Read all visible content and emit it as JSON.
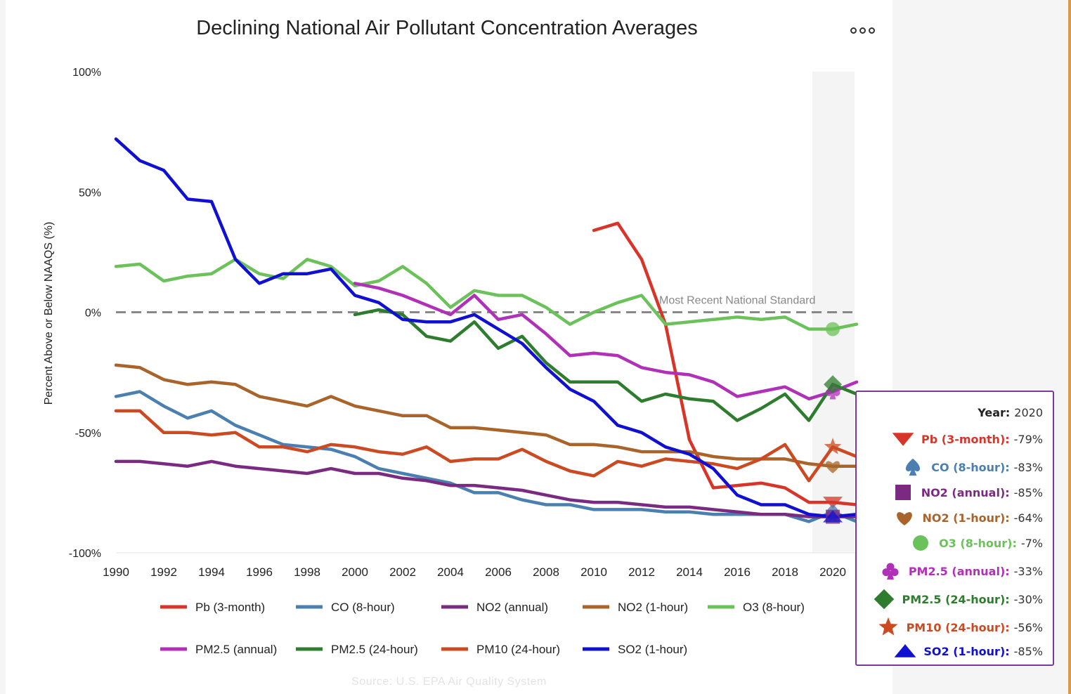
{
  "header": {
    "title": "Declining National Air Pollutant Concentration Averages",
    "menu_icon": "more-horizontal-icon"
  },
  "source": "Source: U.S. EPA Air Quality System",
  "standard_label": "Most Recent National Standard",
  "tooltip": {
    "year_label": "Year:",
    "year_value": "2020",
    "rows": [
      {
        "label": "Pb (3-month):",
        "value": "-79%",
        "color": "#d8352a",
        "symbol": "triangle-down"
      },
      {
        "label": "CO (8-hour):",
        "value": "-83%",
        "color": "#4a7fb0",
        "symbol": "spade"
      },
      {
        "label": "NO2 (annual):",
        "value": "-85%",
        "color": "#7a2a80",
        "symbol": "square"
      },
      {
        "label": "NO2 (1-hour):",
        "value": "-64%",
        "color": "#a8642a",
        "symbol": "heart"
      },
      {
        "label": "O3 (8-hour):",
        "value": "-7%",
        "color": "#6cc25a",
        "symbol": "circle"
      },
      {
        "label": "PM2.5 (annual):",
        "value": "-33%",
        "color": "#b030b8",
        "symbol": "club"
      },
      {
        "label": "PM2.5 (24-hour):",
        "value": "-30%",
        "color": "#2e7d2e",
        "symbol": "diamond"
      },
      {
        "label": "PM10 (24-hour):",
        "value": "-56%",
        "color": "#cc4a22",
        "symbol": "star"
      },
      {
        "label": "SO2 (1-hour):",
        "value": "-85%",
        "color": "#1010d0",
        "symbol": "triangle-up"
      }
    ]
  },
  "chart_data": {
    "type": "line",
    "title": "Declining National Air Pollutant Concentration Averages",
    "ylabel": "Percent Above or Below NAAQS (%)",
    "xlabel": "",
    "xlim": [
      1990,
      2021
    ],
    "ylim": [
      -100,
      100
    ],
    "x_ticks": [
      1990,
      1992,
      1994,
      1996,
      1998,
      2000,
      2002,
      2004,
      2006,
      2008,
      2010,
      2012,
      2014,
      2016,
      2018,
      2020
    ],
    "y_ticks": [
      {
        "value": 100,
        "label": "100%"
      },
      {
        "value": 50,
        "label": "50%"
      },
      {
        "value": 0,
        "label": "0%"
      },
      {
        "value": -50,
        "label": "-50%"
      },
      {
        "value": -100,
        "label": "-100%"
      }
    ],
    "reference_line": {
      "y": 0,
      "label": "Most Recent National Standard"
    },
    "highlight_year": 2020,
    "grid": false,
    "legend_position": "bottom",
    "series": [
      {
        "name": "Pb (3-month)",
        "color": "#d8352a",
        "x": [
          2010,
          2011,
          2012,
          2013,
          2014,
          2015,
          2016,
          2017,
          2018,
          2019,
          2020,
          2021
        ],
        "values": [
          34,
          37,
          22,
          -5,
          -53,
          -73,
          -72,
          -71,
          -73,
          -79,
          -79,
          -80
        ]
      },
      {
        "name": "CO (8-hour)",
        "color": "#4a7fb0",
        "x": [
          1990,
          1991,
          1992,
          1993,
          1994,
          1995,
          1996,
          1997,
          1998,
          1999,
          2000,
          2001,
          2002,
          2003,
          2004,
          2005,
          2006,
          2007,
          2008,
          2009,
          2010,
          2011,
          2012,
          2013,
          2014,
          2015,
          2016,
          2017,
          2018,
          2019,
          2020,
          2021
        ],
        "values": [
          -35,
          -33,
          -39,
          -44,
          -41,
          -47,
          -51,
          -55,
          -56,
          -57,
          -60,
          -65,
          -67,
          -69,
          -71,
          -75,
          -75,
          -78,
          -80,
          -80,
          -82,
          -82,
          -82,
          -83,
          -83,
          -84,
          -84,
          -84,
          -84,
          -87,
          -83,
          -87
        ]
      },
      {
        "name": "NO2 (annual)",
        "color": "#7a2a80",
        "x": [
          1990,
          1991,
          1992,
          1993,
          1994,
          1995,
          1996,
          1997,
          1998,
          1999,
          2000,
          2001,
          2002,
          2003,
          2004,
          2005,
          2006,
          2007,
          2008,
          2009,
          2010,
          2011,
          2012,
          2013,
          2014,
          2015,
          2016,
          2017,
          2018,
          2019,
          2020,
          2021
        ],
        "values": [
          -62,
          -62,
          -63,
          -64,
          -62,
          -64,
          -65,
          -66,
          -67,
          -65,
          -67,
          -67,
          -69,
          -70,
          -72,
          -72,
          -73,
          -74,
          -76,
          -78,
          -79,
          -79,
          -80,
          -81,
          -81,
          -82,
          -83,
          -84,
          -84,
          -85,
          -85,
          -85
        ]
      },
      {
        "name": "NO2 (1-hour)",
        "color": "#a8642a",
        "x": [
          1990,
          1991,
          1992,
          1993,
          1994,
          1995,
          1996,
          1997,
          1998,
          1999,
          2000,
          2001,
          2002,
          2003,
          2004,
          2005,
          2006,
          2007,
          2008,
          2009,
          2010,
          2011,
          2012,
          2013,
          2014,
          2015,
          2016,
          2017,
          2018,
          2019,
          2020,
          2021
        ],
        "values": [
          -22,
          -23,
          -28,
          -30,
          -29,
          -30,
          -35,
          -37,
          -39,
          -35,
          -39,
          -41,
          -43,
          -43,
          -48,
          -48,
          -49,
          -50,
          -51,
          -55,
          -55,
          -56,
          -58,
          -58,
          -58,
          -60,
          -61,
          -61,
          -61,
          -63,
          -64,
          -64
        ]
      },
      {
        "name": "O3 (8-hour)",
        "color": "#6cc25a",
        "x": [
          1990,
          1991,
          1992,
          1993,
          1994,
          1995,
          1996,
          1997,
          1998,
          1999,
          2000,
          2001,
          2002,
          2003,
          2004,
          2005,
          2006,
          2007,
          2008,
          2009,
          2010,
          2011,
          2012,
          2013,
          2014,
          2015,
          2016,
          2017,
          2018,
          2019,
          2020,
          2021
        ],
        "values": [
          19,
          20,
          13,
          15,
          16,
          22,
          16,
          14,
          22,
          19,
          11,
          13,
          19,
          12,
          2,
          9,
          7,
          7,
          2,
          -5,
          0,
          4,
          7,
          -5,
          -4,
          -3,
          -2,
          -3,
          -2,
          -7,
          -7,
          -5
        ]
      },
      {
        "name": "PM2.5 (annual)",
        "color": "#b030b8",
        "x": [
          2000,
          2001,
          2002,
          2003,
          2004,
          2005,
          2006,
          2007,
          2008,
          2009,
          2010,
          2011,
          2012,
          2013,
          2014,
          2015,
          2016,
          2017,
          2018,
          2019,
          2020,
          2021
        ],
        "values": [
          12,
          10,
          7,
          3,
          -1,
          7,
          -3,
          -1,
          -9,
          -18,
          -17,
          -18,
          -23,
          -25,
          -26,
          -29,
          -35,
          -33,
          -31,
          -36,
          -33,
          -29
        ]
      },
      {
        "name": "PM2.5 (24-hour)",
        "color": "#2e7d2e",
        "x": [
          2000,
          2001,
          2002,
          2003,
          2004,
          2005,
          2006,
          2007,
          2008,
          2009,
          2010,
          2011,
          2012,
          2013,
          2014,
          2015,
          2016,
          2017,
          2018,
          2019,
          2020,
          2021
        ],
        "values": [
          -1,
          1,
          -1,
          -10,
          -12,
          -4,
          -15,
          -10,
          -21,
          -29,
          -29,
          -29,
          -37,
          -34,
          -36,
          -37,
          -45,
          -40,
          -34,
          -45,
          -30,
          -34
        ]
      },
      {
        "name": "PM10 (24-hour)",
        "color": "#cc4a22",
        "x": [
          1990,
          1991,
          1992,
          1993,
          1994,
          1995,
          1996,
          1997,
          1998,
          1999,
          2000,
          2001,
          2002,
          2003,
          2004,
          2005,
          2006,
          2007,
          2008,
          2009,
          2010,
          2011,
          2012,
          2013,
          2014,
          2015,
          2016,
          2017,
          2018,
          2019,
          2020,
          2021
        ],
        "values": [
          -41,
          -41,
          -50,
          -50,
          -51,
          -50,
          -56,
          -56,
          -58,
          -55,
          -56,
          -58,
          -59,
          -56,
          -62,
          -61,
          -61,
          -57,
          -62,
          -66,
          -68,
          -62,
          -64,
          -61,
          -62,
          -63,
          -65,
          -61,
          -55,
          -70,
          -56,
          -60
        ]
      },
      {
        "name": "SO2 (1-hour)",
        "color": "#1010d0",
        "x": [
          1990,
          1991,
          1992,
          1993,
          1994,
          1995,
          1996,
          1997,
          1998,
          1999,
          2000,
          2001,
          2002,
          2003,
          2004,
          2005,
          2006,
          2007,
          2008,
          2009,
          2010,
          2011,
          2012,
          2013,
          2014,
          2015,
          2016,
          2017,
          2018,
          2019,
          2020,
          2021
        ],
        "values": [
          72,
          63,
          59,
          47,
          46,
          22,
          12,
          16,
          16,
          18,
          7,
          4,
          -3,
          -4,
          -4,
          -1,
          -7,
          -13,
          -23,
          -32,
          -37,
          -47,
          -50,
          -56,
          -59,
          -65,
          -76,
          -80,
          -80,
          -84,
          -85,
          -84
        ]
      }
    ]
  }
}
